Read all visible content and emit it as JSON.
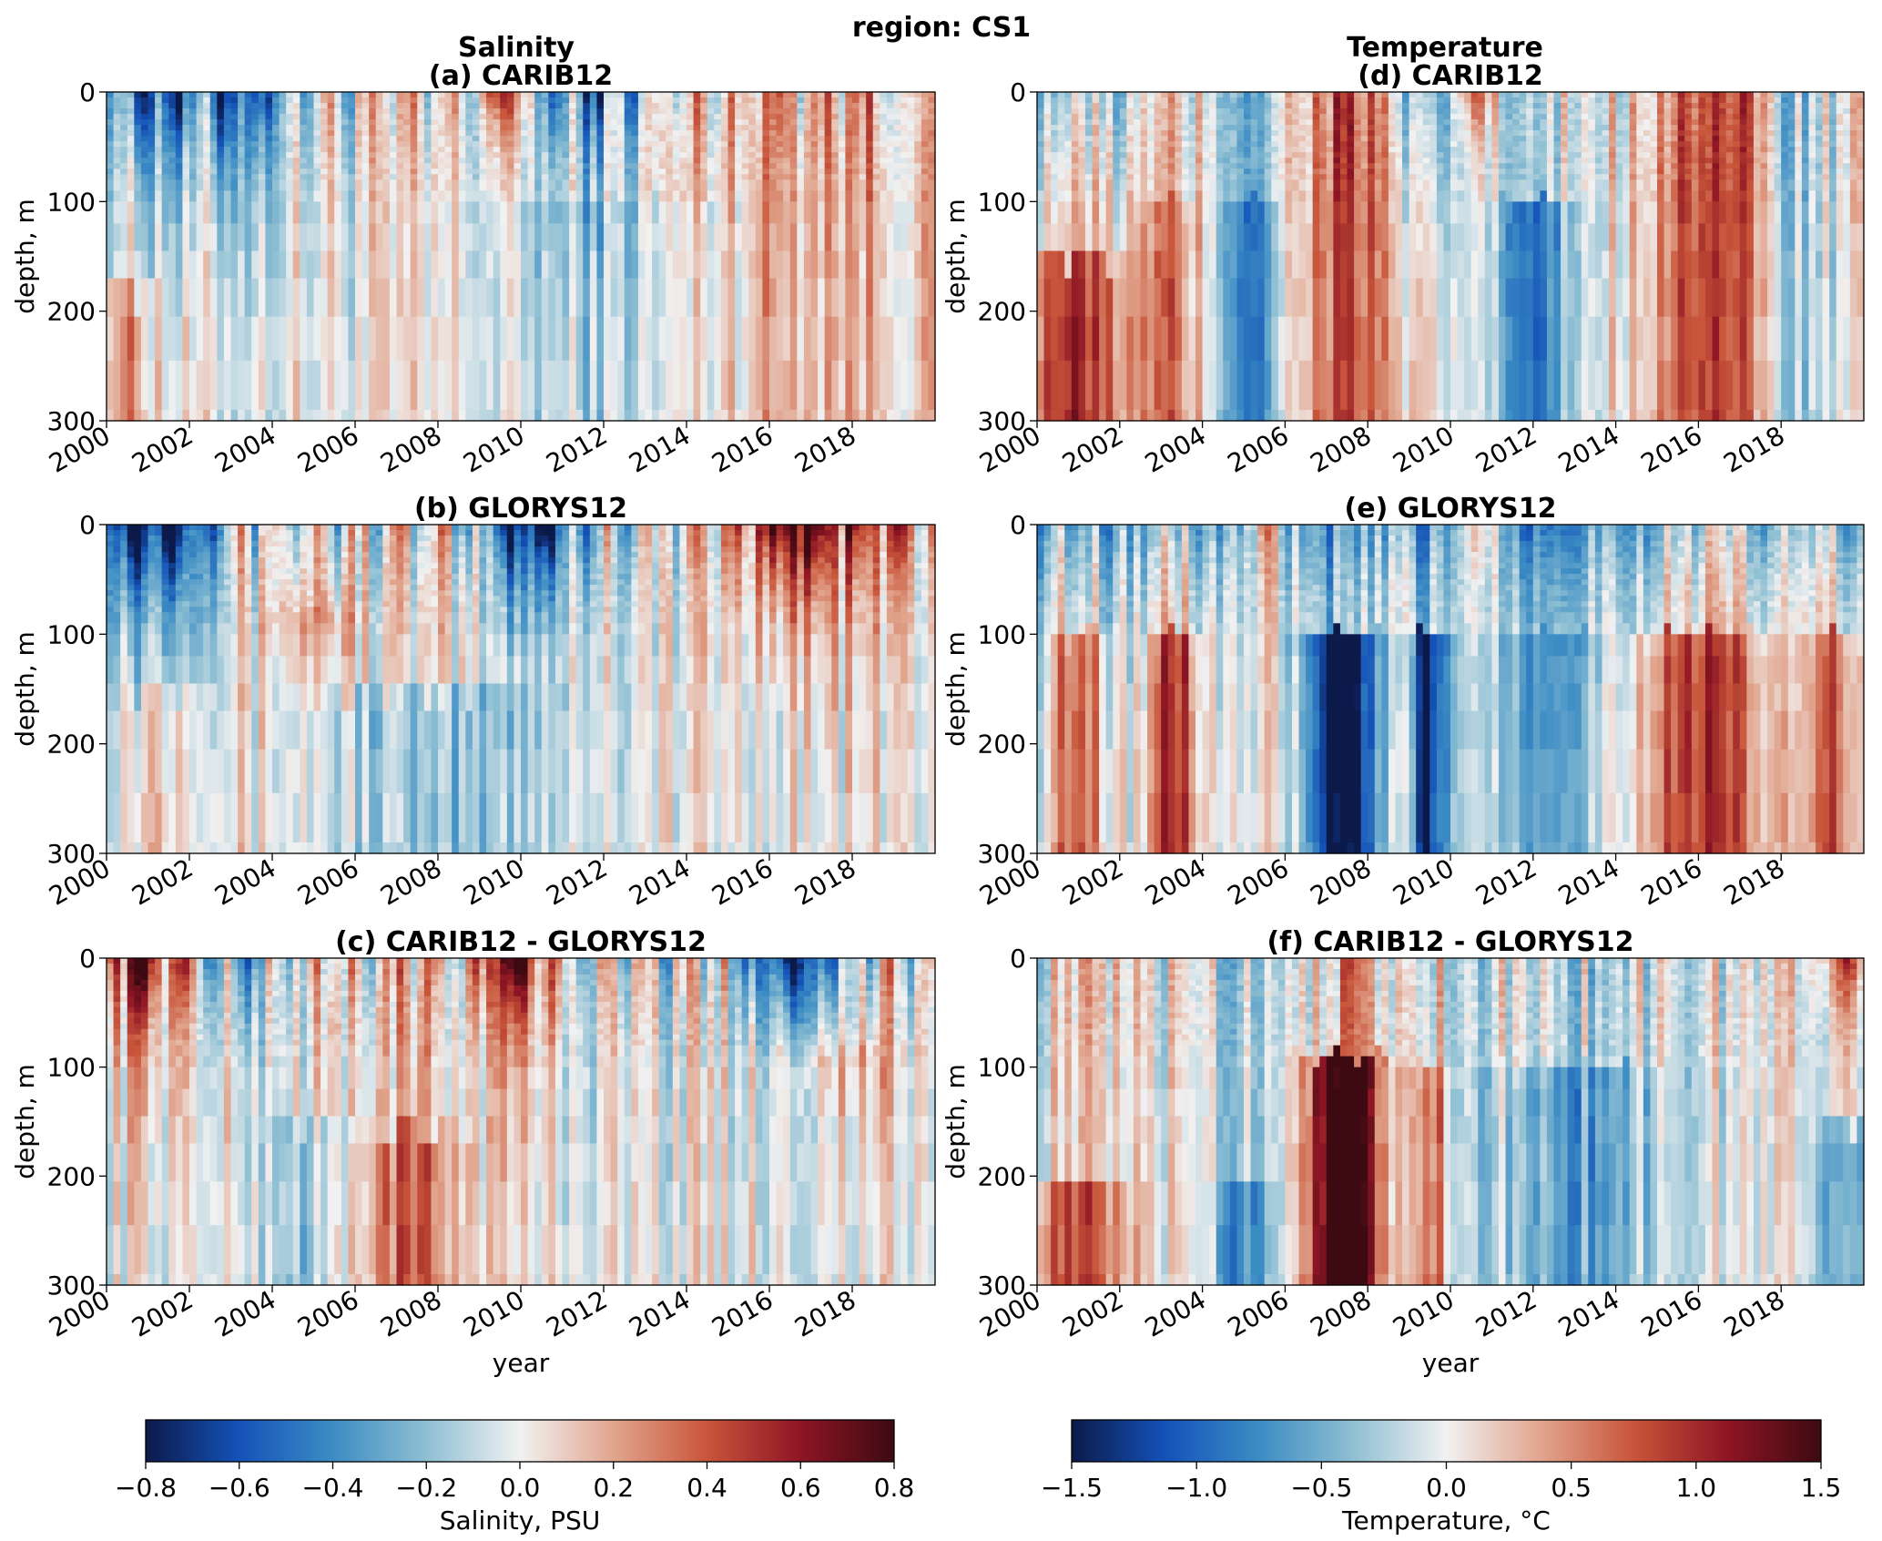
{
  "figure": {
    "suptitle": "region: CS1",
    "column_titles": [
      "Salinity",
      "Temperature"
    ]
  },
  "chart_data": [
    {
      "type": "heatmap",
      "id": "a",
      "title": "(a) CARIB12",
      "variable": "salinity",
      "xlabel": "",
      "ylabel": "depth, m",
      "xlim": [
        2000,
        2020
      ],
      "ylim": [
        300,
        0
      ],
      "y_ticks": [
        "0",
        "100",
        "200",
        "300"
      ],
      "x_ticks": [
        "2000",
        "2002",
        "2004",
        "2006",
        "2008",
        "2010",
        "2012",
        "2014",
        "2016",
        "2018"
      ],
      "anomaly_pattern": "fresh upper layer 2000-2004 and 2010-2013; salty 2015-2020 throughout 0-300 m; salty near surface 2009-2010; salty deep 2000-2001"
    },
    {
      "type": "heatmap",
      "id": "b",
      "title": "(b) GLORYS12",
      "variable": "salinity",
      "xlabel": "",
      "ylabel": "depth, m",
      "xlim": [
        2000,
        2020
      ],
      "ylim": [
        300,
        0
      ],
      "y_ticks": [
        "0",
        "100",
        "200",
        "300"
      ],
      "x_ticks": [
        "2000",
        "2002",
        "2004",
        "2006",
        "2008",
        "2010",
        "2012",
        "2014",
        "2016",
        "2018"
      ],
      "anomaly_pattern": "strong fresh surface 2000-2002 and 2009-2011; strong salty surface 2016-2017; fresh 150-300 m 2006-2010"
    },
    {
      "type": "heatmap",
      "id": "c",
      "title": "(c) CARIB12 - GLORYS12",
      "variable": "salinity",
      "xlabel": "year",
      "ylabel": "depth, m",
      "xlim": [
        2000,
        2020
      ],
      "ylim": [
        300,
        0
      ],
      "y_ticks": [
        "0",
        "100",
        "200",
        "300"
      ],
      "x_ticks": [
        "2000",
        "2002",
        "2004",
        "2006",
        "2008",
        "2010",
        "2012",
        "2014",
        "2016",
        "2018"
      ],
      "anomaly_pattern": "salty surface 2000-2002 and 2009-2010; fresh surface 2016-2017; salty 170-300 m 2006-2008"
    },
    {
      "type": "heatmap",
      "id": "d",
      "title": "(d) CARIB12",
      "variable": "temperature",
      "xlabel": "",
      "ylabel": "depth, m",
      "xlim": [
        2000,
        2020
      ],
      "ylim": [
        300,
        0
      ],
      "y_ticks": [
        "0",
        "100",
        "200",
        "300"
      ],
      "x_ticks": [
        "2000",
        "2002",
        "2004",
        "2006",
        "2008",
        "2010",
        "2012",
        "2014",
        "2016",
        "2018"
      ],
      "anomaly_pattern": "warm deep 2000-2002; cold columns 2005 and 2011-2012; warm 2015-2017 and near-surface 2010"
    },
    {
      "type": "heatmap",
      "id": "e",
      "title": "(e) GLORYS12",
      "variable": "temperature",
      "xlabel": "",
      "ylabel": "depth, m",
      "xlim": [
        2000,
        2020
      ],
      "ylim": [
        300,
        0
      ],
      "y_ticks": [
        "0",
        "100",
        "200",
        "300"
      ],
      "x_ticks": [
        "2000",
        "2002",
        "2004",
        "2006",
        "2008",
        "2010",
        "2012",
        "2014",
        "2016",
        "2018"
      ],
      "anomaly_pattern": "strong cold 100-300 m 2007-2008 and 2009.5; warm 2001 and 2003; warm 2015-2017"
    },
    {
      "type": "heatmap",
      "id": "f",
      "title": "(f) CARIB12 - GLORYS12",
      "variable": "temperature",
      "xlabel": "year",
      "ylabel": "depth, m",
      "xlim": [
        2000,
        2020
      ],
      "ylim": [
        300,
        0
      ],
      "y_ticks": [
        "0",
        "100",
        "200",
        "300"
      ],
      "x_ticks": [
        "2000",
        "2002",
        "2004",
        "2006",
        "2008",
        "2010",
        "2012",
        "2014",
        "2016",
        "2018"
      ],
      "anomaly_pattern": "strong warm 100-300 m 2007-2008; warm deep 2000-2002; mixed elsewhere"
    }
  ],
  "colorbars": [
    {
      "id": "salinity",
      "label": "Salinity, PSU",
      "range": [
        -0.8,
        0.8
      ],
      "ticks": [
        "−0.8",
        "−0.6",
        "−0.4",
        "−0.2",
        "0.0",
        "0.2",
        "0.4",
        "0.6",
        "0.8"
      ]
    },
    {
      "id": "temperature",
      "label": "Temperature, °C",
      "range": [
        -1.5,
        1.5
      ],
      "ticks": [
        "−1.5",
        "−1.0",
        "−0.5",
        "0.0",
        "0.5",
        "1.0",
        "1.5"
      ]
    }
  ],
  "colormap": {
    "name": "RdBu_r-like",
    "stops": [
      "#0c1a4b",
      "#1452b8",
      "#3c8cc4",
      "#8ebfd3",
      "#f1f1f1",
      "#e1a58e",
      "#c8553a",
      "#8e1524",
      "#3d0a12"
    ]
  }
}
